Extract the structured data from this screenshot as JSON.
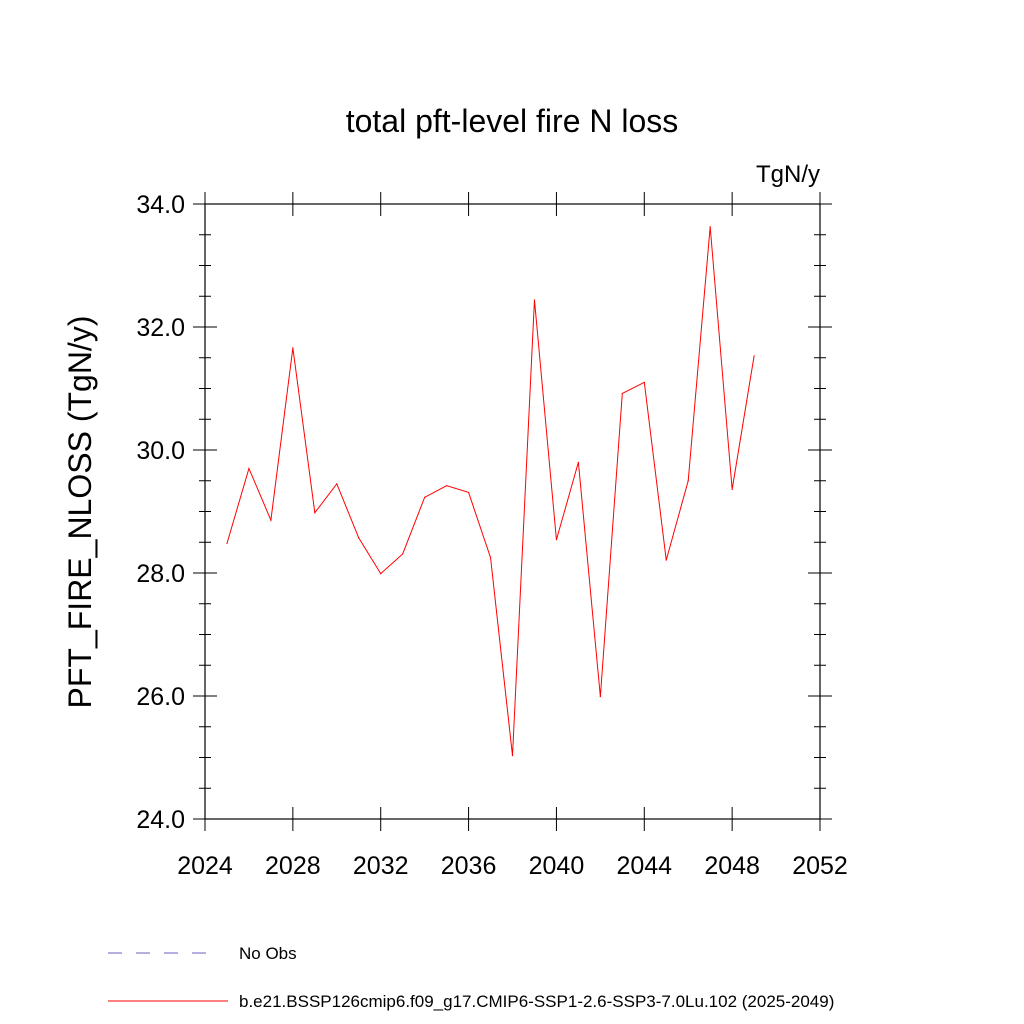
{
  "chart_data": {
    "type": "line",
    "title": "total pft-level fire N loss",
    "units": "TgN/y",
    "ylabel": "PFT_FIRE_NLOSS  (TgN/y)",
    "xlabel": "",
    "xlim": [
      2024,
      2052
    ],
    "ylim": [
      24.0,
      34.0
    ],
    "x_ticks": [
      "2024",
      "2028",
      "2032",
      "2036",
      "2040",
      "2044",
      "2048",
      "2052"
    ],
    "y_ticks": [
      "24.0",
      "26.0",
      "28.0",
      "30.0",
      "32.0",
      "34.0"
    ],
    "x": [
      2025,
      2026,
      2027,
      2028,
      2029,
      2030,
      2031,
      2032,
      2033,
      2034,
      2035,
      2036,
      2037,
      2038,
      2039,
      2040,
      2041,
      2042,
      2043,
      2044,
      2045,
      2046,
      2047,
      2048,
      2049
    ],
    "series": [
      {
        "name": "b.e21.BSSP126cmip6.f09_g17.CMIP6-SSP1-2.6-SSP3-7.0Lu.102 (2025-2049)",
        "color": "#ff0000",
        "values": [
          28.48,
          29.7,
          28.86,
          31.66,
          28.98,
          29.45,
          28.57,
          27.99,
          28.31,
          29.23,
          29.42,
          29.31,
          28.25,
          25.03,
          32.44,
          28.54,
          29.8,
          25.99,
          30.92,
          31.1,
          28.21,
          29.5,
          33.63,
          29.36,
          31.53
        ]
      }
    ],
    "legend": [
      {
        "label": "No Obs",
        "color": "#6b5fbf",
        "style": "dashed"
      },
      {
        "label": "b.e21.BSSP126cmip6.f09_g17.CMIP6-SSP1-2.6-SSP3-7.0Lu.102 (2025-2049)",
        "color": "#ff0000",
        "style": "solid"
      }
    ],
    "legend_position": "bottom",
    "grid": false
  }
}
